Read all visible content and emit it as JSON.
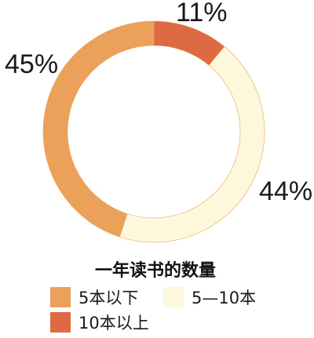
{
  "chart_data": {
    "type": "pie",
    "title": "一年读书的数量",
    "categories": [
      "10本以上",
      "5—10本",
      "5本以下"
    ],
    "values": [
      11,
      44,
      45
    ],
    "value_labels": [
      "11%",
      "44%",
      "45%"
    ],
    "colors": [
      "#dd6a42",
      "#fdf8dc",
      "#eba15a"
    ],
    "legend": {
      "placement": "bottom",
      "items": [
        {
          "label": "5本以下",
          "color": "#eba15a"
        },
        {
          "label": "5—10本",
          "color": "#fdf8dc"
        },
        {
          "label": "10本以上",
          "color": "#dd6a42"
        }
      ]
    }
  }
}
